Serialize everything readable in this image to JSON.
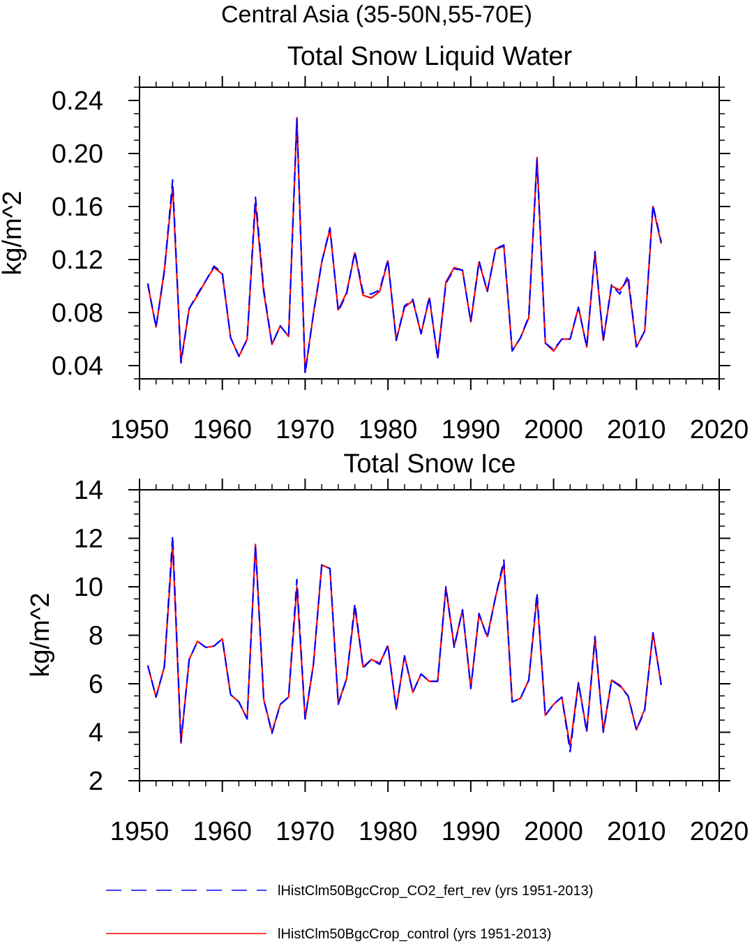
{
  "figure_title": "Central Asia (35-50N,55-70E)",
  "legend": {
    "items": [
      {
        "label": "lHistClm50BgcCrop_CO2_fert_rev (yrs 1951-2013)",
        "color": "#0000ff",
        "style": "dashed"
      },
      {
        "label": "lHistClm50BgcCrop_control (yrs 1951-2013)",
        "color": "#ff0000",
        "style": "solid"
      }
    ]
  },
  "chart_data": [
    {
      "type": "line",
      "title": "Total Snow Liquid Water",
      "xlabel": "",
      "ylabel": "kg/m^2",
      "xlim": [
        1950,
        2020
      ],
      "ylim": [
        0.03,
        0.25
      ],
      "xticks": [
        "1950",
        "1960",
        "1970",
        "1980",
        "1990",
        "2000",
        "2010",
        "2020"
      ],
      "yticks": [
        "0.04",
        "0.08",
        "0.12",
        "0.16",
        "0.20",
        "0.24"
      ],
      "grid": false,
      "x": [
        1951,
        1952,
        1953,
        1954,
        1955,
        1956,
        1957,
        1958,
        1959,
        1960,
        1961,
        1962,
        1963,
        1964,
        1965,
        1966,
        1967,
        1968,
        1969,
        1970,
        1971,
        1972,
        1973,
        1974,
        1975,
        1976,
        1977,
        1978,
        1979,
        1980,
        1981,
        1982,
        1983,
        1984,
        1985,
        1986,
        1987,
        1988,
        1989,
        1990,
        1991,
        1992,
        1993,
        1994,
        1995,
        1996,
        1997,
        1998,
        1999,
        2000,
        2001,
        2002,
        2003,
        2004,
        2005,
        2006,
        2007,
        2008,
        2009,
        2010,
        2011,
        2012,
        2013
      ],
      "series": [
        {
          "name": "lHistClm50BgcCrop_CO2_fert_rev (yrs 1951-2013)",
          "color": "#0000ff",
          "style": "dashed",
          "values": [
            0.102,
            0.069,
            0.111,
            0.18,
            0.042,
            0.083,
            0.094,
            0.104,
            0.115,
            0.11,
            0.061,
            0.047,
            0.06,
            0.167,
            0.097,
            0.056,
            0.07,
            0.062,
            0.226,
            0.034,
            0.079,
            0.118,
            0.144,
            0.081,
            0.094,
            0.126,
            0.095,
            0.094,
            0.097,
            0.12,
            0.059,
            0.085,
            0.09,
            0.064,
            0.092,
            0.045,
            0.102,
            0.113,
            0.112,
            0.073,
            0.119,
            0.096,
            0.128,
            0.131,
            0.051,
            0.061,
            0.077,
            0.195,
            0.057,
            0.052,
            0.06,
            0.06,
            0.084,
            0.054,
            0.126,
            0.059,
            0.101,
            0.094,
            0.108,
            0.054,
            0.066,
            0.161,
            0.133
          ]
        },
        {
          "name": "lHistClm50BgcCrop_control (yrs 1951-2013)",
          "color": "#ff0000",
          "style": "solid",
          "values": [
            0.101,
            0.069,
            0.112,
            0.175,
            0.043,
            0.083,
            0.093,
            0.104,
            0.114,
            0.109,
            0.061,
            0.047,
            0.06,
            0.163,
            0.095,
            0.056,
            0.07,
            0.062,
            0.227,
            0.035,
            0.079,
            0.118,
            0.143,
            0.082,
            0.095,
            0.125,
            0.093,
            0.091,
            0.096,
            0.119,
            0.059,
            0.084,
            0.089,
            0.064,
            0.091,
            0.046,
            0.103,
            0.114,
            0.112,
            0.073,
            0.118,
            0.096,
            0.128,
            0.13,
            0.051,
            0.061,
            0.076,
            0.197,
            0.057,
            0.051,
            0.06,
            0.06,
            0.084,
            0.054,
            0.125,
            0.059,
            0.1,
            0.097,
            0.105,
            0.054,
            0.066,
            0.16,
            0.132
          ]
        }
      ]
    },
    {
      "type": "line",
      "title": "Total Snow Ice",
      "xlabel": "",
      "ylabel": "kg/m^2",
      "xlim": [
        1950,
        2020
      ],
      "ylim": [
        2,
        14
      ],
      "xticks": [
        "1950",
        "1960",
        "1970",
        "1980",
        "1990",
        "2000",
        "2010",
        "2020"
      ],
      "yticks": [
        "2",
        "4",
        "6",
        "8",
        "10",
        "12",
        "14"
      ],
      "grid": false,
      "x": [
        1951,
        1952,
        1953,
        1954,
        1955,
        1956,
        1957,
        1958,
        1959,
        1960,
        1961,
        1962,
        1963,
        1964,
        1965,
        1966,
        1967,
        1968,
        1969,
        1970,
        1971,
        1972,
        1973,
        1974,
        1975,
        1976,
        1977,
        1978,
        1979,
        1980,
        1981,
        1982,
        1983,
        1984,
        1985,
        1986,
        1987,
        1988,
        1989,
        1990,
        1991,
        1992,
        1993,
        1994,
        1995,
        1996,
        1997,
        1998,
        1999,
        2000,
        2001,
        2002,
        2003,
        2004,
        2005,
        2006,
        2007,
        2008,
        2009,
        2010,
        2011,
        2012,
        2013
      ],
      "series": [
        {
          "name": "lHistClm50BgcCrop_CO2_fert_rev (yrs 1951-2013)",
          "color": "#0000ff",
          "style": "dashed",
          "values": [
            6.75,
            5.45,
            6.7,
            12.1,
            3.6,
            7.0,
            7.75,
            7.5,
            7.55,
            7.85,
            5.55,
            5.25,
            4.55,
            11.7,
            5.35,
            3.95,
            5.15,
            5.45,
            10.3,
            4.55,
            6.8,
            10.9,
            10.75,
            5.15,
            6.2,
            9.3,
            6.65,
            7.0,
            6.8,
            7.6,
            4.95,
            7.15,
            5.65,
            6.4,
            6.1,
            6.1,
            10.0,
            7.5,
            9.05,
            5.8,
            8.9,
            7.9,
            9.6,
            11.1,
            5.25,
            5.4,
            6.15,
            9.75,
            4.7,
            5.15,
            5.45,
            3.2,
            6.05,
            4.0,
            7.95,
            4.0,
            6.15,
            5.9,
            5.5,
            4.1,
            4.9,
            8.1,
            5.95
          ]
        },
        {
          "name": "lHistClm50BgcCrop_control (yrs 1951-2013)",
          "color": "#ff0000",
          "style": "solid",
          "values": [
            6.75,
            5.45,
            6.7,
            11.8,
            3.55,
            7.0,
            7.75,
            7.5,
            7.55,
            7.85,
            5.55,
            5.25,
            4.55,
            11.75,
            5.35,
            4.0,
            5.15,
            5.45,
            10.0,
            4.55,
            6.8,
            10.9,
            10.75,
            5.2,
            6.2,
            9.15,
            6.7,
            7.0,
            6.85,
            7.55,
            4.95,
            7.15,
            5.65,
            6.4,
            6.1,
            6.1,
            9.95,
            7.55,
            9.05,
            5.85,
            8.85,
            7.95,
            9.6,
            10.95,
            5.25,
            5.4,
            6.15,
            9.6,
            4.7,
            5.15,
            5.45,
            3.4,
            6.05,
            4.05,
            7.85,
            4.05,
            6.15,
            5.95,
            5.5,
            4.1,
            4.95,
            8.1,
            5.95
          ]
        }
      ]
    }
  ]
}
